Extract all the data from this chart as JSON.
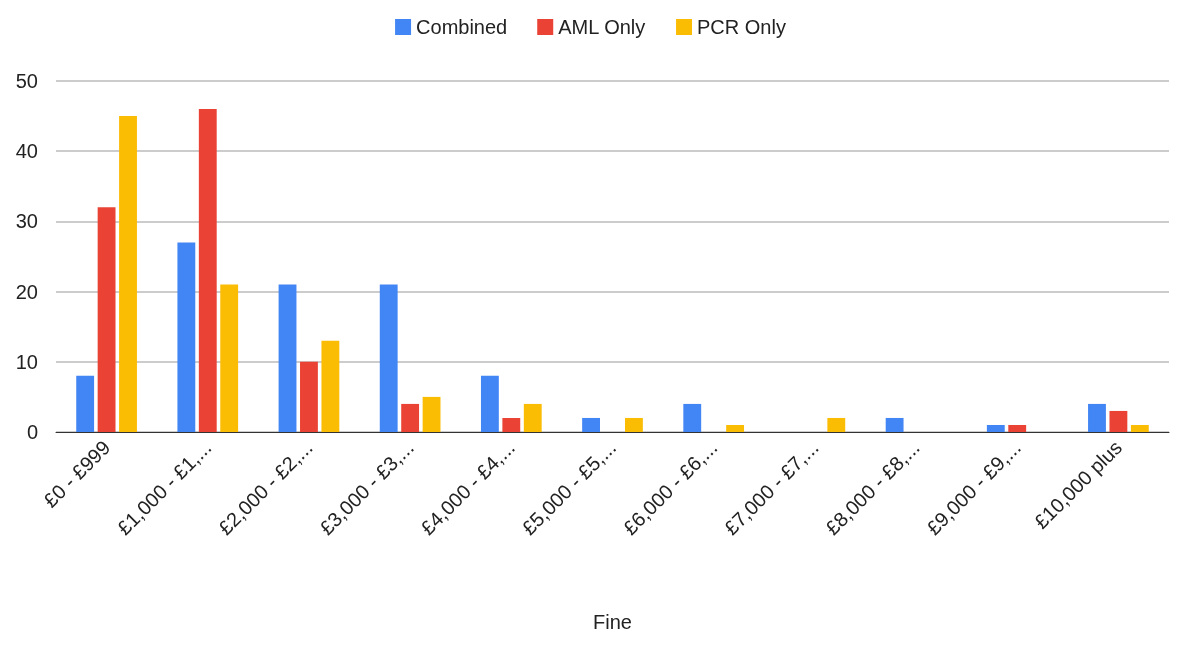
{
  "chart_data": {
    "type": "bar",
    "xlabel": "Fine",
    "categories": [
      "£0 - £999",
      "£1,000 - £1,...",
      "£2,000 - £2,...",
      "£3,000 - £3,...",
      "£4,000 - £4,...",
      "£5,000 - £5,...",
      "£6,000 - £6,...",
      "£7,000 - £7,...",
      "£8,000 - £8,...",
      "£9,000 - £9,...",
      "£10,000 plus"
    ],
    "series": [
      {
        "name": "Combined",
        "color": "#4285f4",
        "values": [
          8,
          27,
          21,
          21,
          8,
          2,
          4,
          0,
          2,
          1,
          4
        ]
      },
      {
        "name": "AML Only",
        "color": "#ea4335",
        "values": [
          32,
          46,
          10,
          4,
          2,
          0,
          0,
          0,
          0,
          1,
          3
        ]
      },
      {
        "name": "PCR Only",
        "color": "#fbbc04",
        "values": [
          45,
          21,
          13,
          5,
          4,
          2,
          1,
          2,
          0,
          0,
          1
        ]
      }
    ],
    "ylim": [
      0,
      50
    ],
    "yticks": [
      0,
      10,
      20,
      30,
      40,
      50
    ],
    "grid": "y",
    "legend": "top"
  }
}
